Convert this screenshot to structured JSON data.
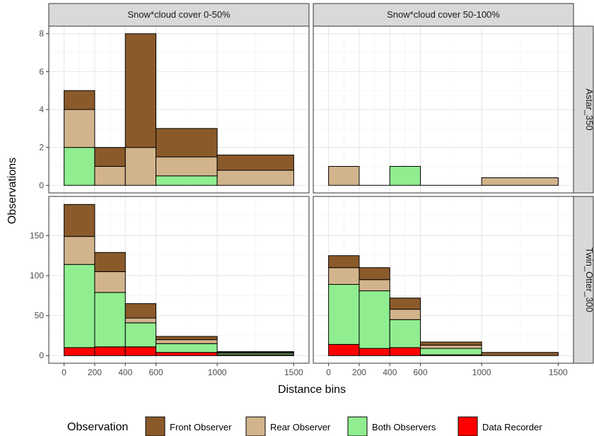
{
  "chart_data": {
    "type": "bar",
    "subtype": "faceted stacked histogram",
    "xlabel": "Distance bins",
    "ylabel": "Observations",
    "x_ticks": [
      "0",
      "200",
      "400",
      "600",
      "1000",
      "1500"
    ],
    "x_tick_values": [
      0,
      200,
      400,
      600,
      1000,
      1500
    ],
    "xlim": [
      -100,
      1600
    ],
    "bins": [
      [
        0,
        200
      ],
      [
        200,
        400
      ],
      [
        400,
        600
      ],
      [
        600,
        1000
      ],
      [
        1000,
        1500
      ]
    ],
    "column_facets": [
      "Snow*cloud cover 0-50%",
      "Snow*cloud cover 50-100%"
    ],
    "row_facets": [
      "Astar_350",
      "Twin_Otter_300"
    ],
    "rows": [
      {
        "ylim": [
          -0.4,
          8.4
        ],
        "y_ticks": [
          0,
          2,
          4,
          6,
          8
        ]
      },
      {
        "ylim": [
          -9.5,
          199
        ],
        "y_ticks": [
          0,
          50,
          100,
          150
        ]
      }
    ],
    "legend": {
      "title": "Observation",
      "position": "bottom",
      "entries": [
        {
          "name": "Front Observer",
          "color": "#8B5A2B"
        },
        {
          "name": "Rear Observer",
          "color": "#D2B48C"
        },
        {
          "name": "Both Observers",
          "color": "#90EE90"
        },
        {
          "name": "Data Recorder",
          "color": "#FF0000"
        }
      ]
    },
    "grid": true,
    "stack_order_bottom_to_top": [
      "Data Recorder",
      "Both Observers",
      "Rear Observer",
      "Front Observer"
    ],
    "panels": [
      {
        "row": 0,
        "col": 0,
        "series": [
          {
            "name": "Data Recorder",
            "values": [
              0,
              0,
              0,
              0,
              0
            ]
          },
          {
            "name": "Both Observers",
            "values": [
              2,
              0,
              0,
              0.5,
              0
            ]
          },
          {
            "name": "Rear Observer",
            "values": [
              2,
              1,
              2,
              1,
              0.8
            ]
          },
          {
            "name": "Front Observer",
            "values": [
              1,
              1,
              6,
              1.5,
              0.8
            ]
          }
        ]
      },
      {
        "row": 0,
        "col": 1,
        "series": [
          {
            "name": "Data Recorder",
            "values": [
              0,
              0,
              0,
              0,
              0
            ]
          },
          {
            "name": "Both Observers",
            "values": [
              0,
              0,
              1,
              0,
              0
            ]
          },
          {
            "name": "Rear Observer",
            "values": [
              1,
              0,
              0,
              0,
              0.4
            ]
          },
          {
            "name": "Front Observer",
            "values": [
              0,
              0,
              0,
              0,
              0
            ]
          }
        ]
      },
      {
        "row": 1,
        "col": 0,
        "series": [
          {
            "name": "Data Recorder",
            "values": [
              10,
              11,
              11,
              4,
              1
            ]
          },
          {
            "name": "Both Observers",
            "values": [
              104,
              68,
              30,
              11,
              2
            ]
          },
          {
            "name": "Rear Observer",
            "values": [
              35,
              26,
              6,
              5,
              1
            ]
          },
          {
            "name": "Front Observer",
            "values": [
              40,
              24,
              18,
              4,
              1
            ]
          }
        ]
      },
      {
        "row": 1,
        "col": 1,
        "series": [
          {
            "name": "Data Recorder",
            "values": [
              14,
              9,
              10,
              1,
              0
            ]
          },
          {
            "name": "Both Observers",
            "values": [
              75,
              72,
              35,
              8,
              0
            ]
          },
          {
            "name": "Rear Observer",
            "values": [
              21,
              14,
              13,
              4,
              0
            ]
          },
          {
            "name": "Front Observer",
            "values": [
              15,
              15,
              14,
              4,
              4
            ]
          }
        ]
      }
    ]
  }
}
